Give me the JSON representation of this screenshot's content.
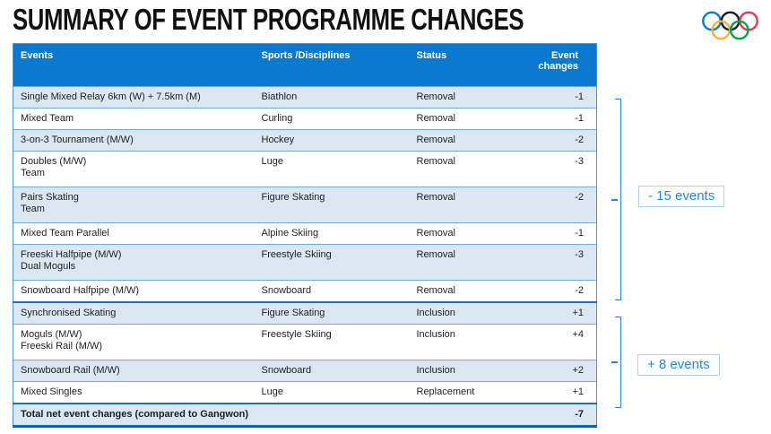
{
  "title": "SUMMARY OF EVENT PROGRAMME CHANGES",
  "logo": {
    "name": "olympic-rings"
  },
  "table": {
    "columns": [
      "Events",
      "Sports /Disciplines",
      "Status",
      "Event changes"
    ],
    "rows": [
      {
        "event_lines": [
          "Single Mixed Relay 6km (W) + 7.5km (M)"
        ],
        "sport": "Biathlon",
        "status": "Removal",
        "change": "-1"
      },
      {
        "event_lines": [
          "Mixed Team"
        ],
        "sport": "Curling",
        "status": "Removal",
        "change": "-1"
      },
      {
        "event_lines": [
          "3-on-3 Tournament (M/W)"
        ],
        "sport": "Hockey",
        "status": "Removal",
        "change": "-2"
      },
      {
        "event_lines": [
          "Doubles (M/W)",
          "Team"
        ],
        "sport": "Luge",
        "status": "Removal",
        "change": "-3"
      },
      {
        "event_lines": [
          "Pairs Skating",
          "Team"
        ],
        "sport": "Figure Skating",
        "status": "Removal",
        "change": "-2"
      },
      {
        "event_lines": [
          "Mixed Team Parallel"
        ],
        "sport": "Alpine Skiing",
        "status": "Removal",
        "change": "-1"
      },
      {
        "event_lines": [
          "Freeski Halfpipe (M/W)",
          "Dual Moguls"
        ],
        "sport": "Freestyle Skiing",
        "status": "Removal",
        "change": "-3"
      },
      {
        "event_lines": [
          "Snowboard Halfpipe (M/W)"
        ],
        "sport": "Snowboard",
        "status": "Removal",
        "change": "-2"
      },
      {
        "event_lines": [
          "Synchronised Skating"
        ],
        "sport": "Figure Skating",
        "status": "Inclusion",
        "change": "+1"
      },
      {
        "event_lines": [
          "Moguls (M/W)",
          "Freeski Rail (M/W)"
        ],
        "sport": "Freestyle Skiing",
        "status": "Inclusion",
        "change": "+4"
      },
      {
        "event_lines": [
          "Snowboard Rail  (M/W)"
        ],
        "sport": "Snowboard",
        "status": "Inclusion",
        "change": "+2"
      },
      {
        "event_lines": [
          "Mixed Singles"
        ],
        "sport": "Luge",
        "status": "Replacement",
        "change": "+1"
      }
    ],
    "total": {
      "label": "Total net event changes (compared to Gangwon)",
      "value": "-7"
    }
  },
  "annotations": {
    "removals": {
      "label": "- 15 events"
    },
    "additions": {
      "label": "+ 8 events"
    }
  },
  "colors": {
    "header_bg": "#0b79d0",
    "row_shade": "#dbe6f3",
    "accent": "#1f87e2",
    "bracket_line": "#2a81d8",
    "rings": {
      "blue": "#0081C8",
      "yellow": "#FCB131",
      "black": "#1b1b1b",
      "green": "#00A651",
      "red": "#EE334E"
    }
  }
}
